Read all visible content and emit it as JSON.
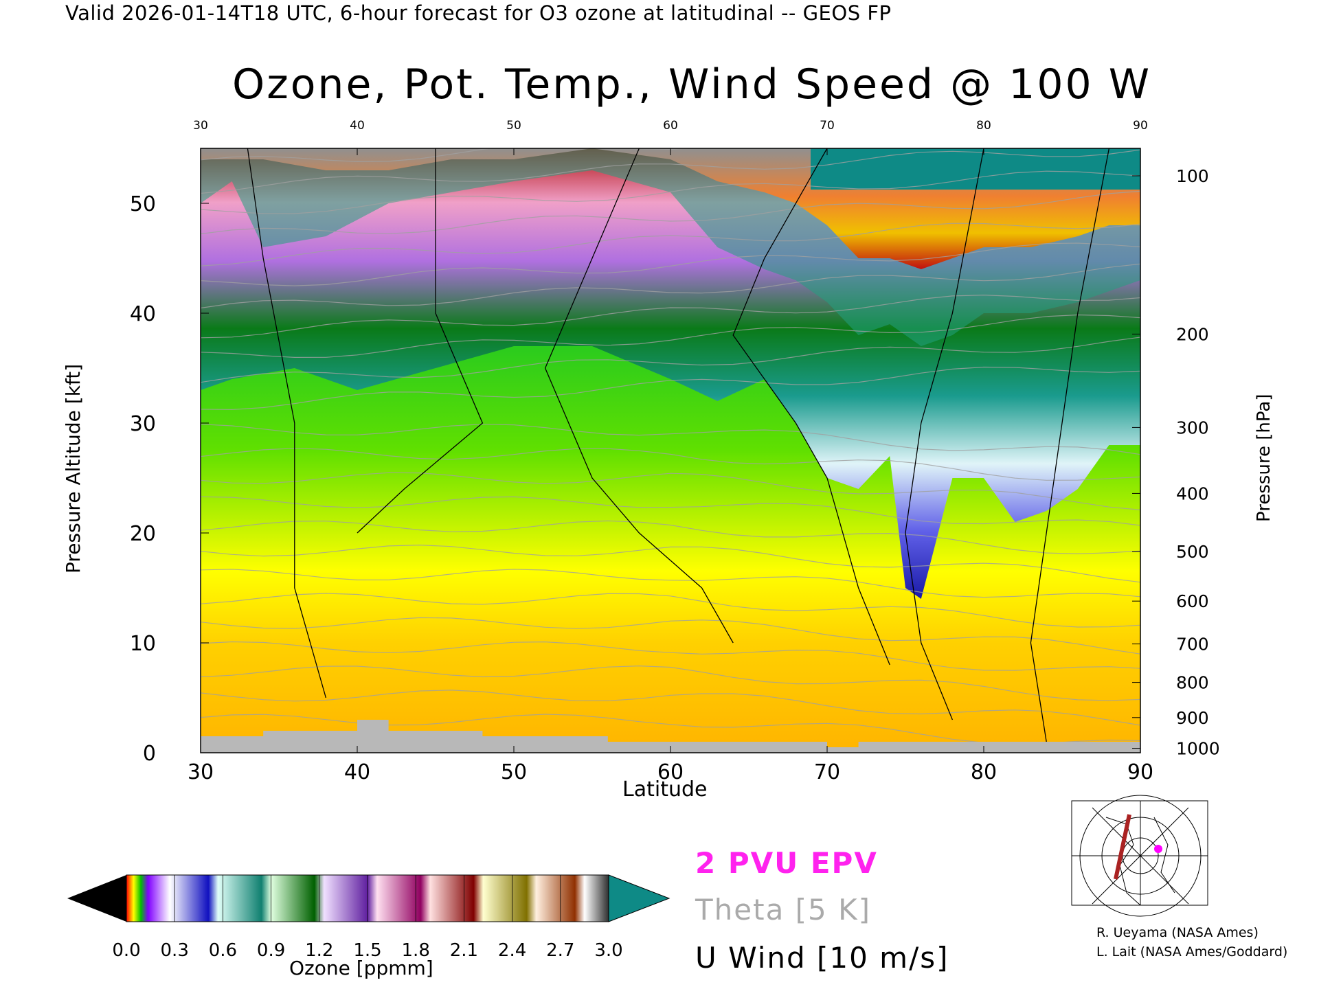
{
  "header": {
    "valid_line": "Valid 2026-01-14T18 UTC, 6-hour forecast for O3 ozone at latitudinal -- GEOS FP"
  },
  "chart_data": {
    "type": "heatmap",
    "title": "Ozone, Pot. Temp., Wind Speed @ 100 W",
    "xlabel": "Latitude",
    "ylabel": "Pressure Altitude [kft]",
    "ylabel_right": "Pressure [hPa]",
    "xlim": [
      30,
      90
    ],
    "ylim": [
      0,
      55
    ],
    "x_ticks": [
      "30",
      "40",
      "50",
      "60",
      "70",
      "80",
      "90"
    ],
    "top_ticks": [
      "30",
      "40",
      "50",
      "60",
      "70",
      "80",
      "90"
    ],
    "y_ticks": [
      "0",
      "10",
      "20",
      "30",
      "40",
      "50"
    ],
    "right_ticks": [
      {
        "label": "100",
        "kft": 52.5
      },
      {
        "label": "200",
        "kft": 38.1
      },
      {
        "label": "300",
        "kft": 29.6
      },
      {
        "label": "400",
        "kft": 23.6
      },
      {
        "label": "500",
        "kft": 18.3
      },
      {
        "label": "600",
        "kft": 13.8
      },
      {
        "label": "700",
        "kft": 9.9
      },
      {
        "label": "800",
        "kft": 6.4
      },
      {
        "label": "900",
        "kft": 3.2
      },
      {
        "label": "1000",
        "kft": 0.4
      }
    ],
    "ozone_boundaries": [
      {
        "level": "ozone 0.6 ppmm (tropopause)",
        "lat": [
          30,
          32,
          36,
          40,
          45,
          50,
          55,
          60,
          63,
          66,
          68,
          70,
          72,
          74,
          75,
          76,
          78,
          80,
          82,
          84,
          86,
          88,
          90
        ],
        "kft": [
          33,
          34,
          35,
          33,
          35,
          37,
          37,
          34,
          32,
          34,
          30,
          25,
          24,
          27,
          15,
          14,
          25,
          25,
          21,
          22,
          24,
          28,
          28
        ]
      },
      {
        "level": "ozone 1.2 ppmm",
        "lat": [
          30,
          32,
          34,
          38,
          42,
          46,
          50,
          55,
          60,
          63,
          66,
          68,
          70,
          72,
          74,
          76,
          78,
          80,
          83,
          86,
          88,
          90
        ],
        "kft": [
          50,
          52,
          46,
          47,
          50,
          51,
          52,
          53,
          51,
          46,
          44,
          43,
          41,
          38,
          39,
          37,
          38,
          40,
          40,
          41,
          42,
          43
        ]
      },
      {
        "level": "ozone 1.8 ppmm",
        "lat": [
          30,
          34,
          38,
          42,
          46,
          50,
          55,
          60,
          63,
          66,
          68,
          70,
          72,
          74,
          76,
          78,
          80,
          83,
          86,
          88,
          90
        ],
        "kft": [
          54,
          54,
          53,
          53,
          54,
          54,
          55,
          54,
          52,
          51,
          50,
          48,
          45,
          45,
          44,
          45,
          46,
          46,
          47,
          48,
          48
        ]
      }
    ],
    "series": [
      {
        "name": "2 PVU EPV",
        "color": "#ff22ee"
      },
      {
        "name": "Theta [5 K]",
        "color": "#aaaaaa"
      },
      {
        "name": "U Wind [10 m/s]",
        "color": "#000000"
      }
    ],
    "colorbar": {
      "title": "Ozone [ppmm]",
      "ticks": [
        "0.0",
        "0.3",
        "0.6",
        "0.9",
        "1.2",
        "1.5",
        "1.8",
        "2.1",
        "2.4",
        "2.7",
        "3.0"
      ],
      "range": [
        0,
        3.0
      ]
    }
  },
  "legend": {
    "epv": "2 PVU EPV",
    "theta": "Theta [5 K]",
    "wind": "U Wind [10 m/s]"
  },
  "credits": {
    "line1": "R. Ueyama (NASA Ames)",
    "line2": "L. Lait (NASA Ames/Goddard)"
  }
}
